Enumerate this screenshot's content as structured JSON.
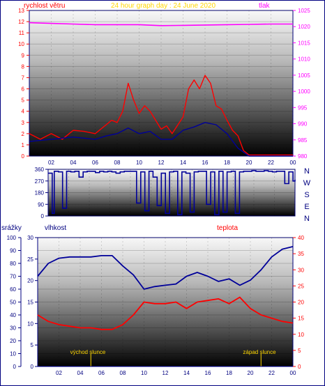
{
  "top_chart": {
    "title": "24 hour graph day : 24 June 2020",
    "left_label": "rychlost větru",
    "right_label": "tlak",
    "colors": {
      "title": "#ffd700",
      "wind": "#ff0000",
      "pressure": "#ff00ff",
      "gust_blue": "#000099",
      "axis": "#ff0000"
    }
  },
  "dir_chart": {
    "right_labels": [
      "N",
      "W",
      "S",
      "E",
      "N"
    ],
    "colors": {
      "direction": "#000099",
      "axis": "#000080"
    }
  },
  "bottom_chart": {
    "left_label": "srážky",
    "mid_label": "vlhkost",
    "right_label": "teplota",
    "sunrise_label": "východ slunce",
    "sunset_label": "západ slunce",
    "colors": {
      "humidity": "#000099",
      "temperature": "#ff0000",
      "annot": "#ffd700",
      "axis": "#000080"
    }
  },
  "chart_data": [
    {
      "type": "line",
      "title": "24 hour graph day : 24 June 2020",
      "xlabel": "",
      "x_ticks": [
        "02",
        "04",
        "06",
        "08",
        "10",
        "12",
        "14",
        "16",
        "18",
        "20",
        "22",
        "00"
      ],
      "y_left_ticks": [
        0,
        1,
        2,
        3,
        4,
        5,
        6,
        7,
        8,
        9,
        10,
        11,
        12,
        13
      ],
      "y_right_ticks": [
        980,
        985,
        990,
        995,
        1000,
        1005,
        1010,
        1015,
        1020,
        1025
      ],
      "ylim_left": [
        0,
        13
      ],
      "ylim_right": [
        980,
        1025
      ],
      "series": [
        {
          "name": "rychlost větru",
          "axis": "left",
          "color": "#ff0000",
          "x": [
            0,
            1,
            2,
            3,
            4,
            5,
            6,
            7,
            7.5,
            8,
            8.5,
            9,
            9.5,
            10,
            10.5,
            11,
            12,
            12.5,
            13,
            14,
            14.5,
            15,
            15.5,
            16,
            16.5,
            17,
            17.5,
            18,
            18.5,
            19,
            19.5,
            20,
            22,
            23,
            24
          ],
          "values": [
            2,
            1.5,
            2,
            1.5,
            2.3,
            2.2,
            2,
            2.8,
            3.2,
            3,
            4,
            6.5,
            5,
            3.8,
            4.5,
            4,
            2.4,
            2.7,
            2,
            3.5,
            6,
            6.8,
            6,
            7.2,
            6.5,
            4.5,
            4.2,
            3.2,
            2.3,
            1.8,
            0.5,
            0.1,
            0.1,
            0.1,
            0.1
          ]
        },
        {
          "name": "",
          "axis": "left",
          "color": "#000099",
          "x": [
            0,
            2,
            4,
            6,
            7,
            8,
            9,
            10,
            11,
            12,
            13,
            14,
            15,
            16,
            17,
            18,
            19,
            20,
            22,
            24
          ],
          "values": [
            1.3,
            1.5,
            1.7,
            1.5,
            1.8,
            2,
            2.5,
            2,
            2.2,
            1.5,
            1.5,
            2.3,
            2.6,
            3,
            2.8,
            2,
            0.7,
            0,
            0,
            0
          ]
        },
        {
          "name": "tlak",
          "axis": "right",
          "color": "#ff00ff",
          "x": [
            0,
            2,
            4,
            6,
            8,
            10,
            12,
            14,
            16,
            18,
            20,
            22,
            24
          ],
          "values": [
            1021.2,
            1021,
            1020.8,
            1020.6,
            1020.6,
            1020.6,
            1020.3,
            1020.4,
            1020.5,
            1020.6,
            1020.7,
            1020.8,
            1020.8
          ]
        }
      ]
    },
    {
      "type": "line",
      "title": "",
      "x_ticks": [
        "",
        "",
        "",
        "",
        "",
        "",
        "",
        "",
        "",
        "",
        "",
        ""
      ],
      "y_ticks": [
        0,
        90,
        180,
        270,
        360
      ],
      "ylim": [
        0,
        360
      ],
      "series": [
        {
          "name": "",
          "color": "#000099",
          "x": [
            0,
            0.4,
            0.6,
            1,
            1.4,
            1.8,
            2.2,
            2.6,
            3,
            3.4,
            3.8,
            4.2,
            4.6,
            5,
            5.4,
            5.8,
            6.2,
            6.6,
            7,
            7.4,
            7.8,
            8.2,
            8.6,
            9,
            9.4,
            9.8,
            10.2,
            10.6,
            11,
            11.4,
            11.8,
            12.2,
            12.6,
            13,
            13.4,
            13.8,
            14.2,
            14.6,
            15,
            15.4,
            15.8,
            16.2,
            16.6,
            17,
            17.4,
            17.8,
            18.2,
            18.6,
            19,
            19.4,
            19.8,
            20.2,
            20.6,
            21,
            21.4,
            21.8,
            22.2,
            22.6,
            23,
            23.4,
            23.8,
            24
          ],
          "values": [
            330,
            20,
            345,
            340,
            60,
            345,
            340,
            345,
            300,
            340,
            345,
            345,
            335,
            345,
            340,
            345,
            340,
            330,
            340,
            345,
            345,
            345,
            100,
            340,
            40,
            345,
            300,
            80,
            330,
            20,
            340,
            345,
            10,
            340,
            330,
            30,
            340,
            345,
            345,
            90,
            340,
            10,
            345,
            30,
            340,
            345,
            20,
            340,
            345,
            345,
            350,
            345,
            345,
            350,
            345,
            340,
            345,
            345,
            250,
            340,
            270,
            280
          ]
        }
      ]
    },
    {
      "type": "line",
      "title": "",
      "x_ticks": [
        "02",
        "04",
        "06",
        "08",
        "10",
        "12",
        "14",
        "16",
        "18",
        "20",
        "22",
        "00"
      ],
      "y_left_ticks": [
        0,
        10,
        20,
        30,
        40,
        50,
        60,
        70,
        80,
        90,
        100
      ],
      "y_mid_ticks": [
        0,
        5,
        10,
        15,
        20,
        25,
        30
      ],
      "y_right_ticks": [
        0,
        5,
        10,
        15,
        20,
        25,
        30,
        35,
        40
      ],
      "ylim_left": [
        0,
        100
      ],
      "ylim_mid": [
        0,
        30
      ],
      "ylim_right": [
        0,
        40
      ],
      "series": [
        {
          "name": "vlhkost",
          "axis": "left",
          "color": "#000099",
          "x": [
            0,
            1,
            2,
            3,
            4,
            5,
            6,
            7,
            8,
            9,
            10,
            11,
            12,
            13,
            14,
            15,
            16,
            17,
            18,
            19,
            20,
            21,
            22,
            23,
            24
          ],
          "values": [
            70,
            80,
            84,
            85,
            85,
            85,
            86,
            86,
            78,
            71,
            60,
            62,
            63,
            64,
            70,
            73,
            70,
            66,
            68,
            63,
            67,
            75,
            85,
            91,
            93
          ]
        },
        {
          "name": "teplota",
          "axis": "right",
          "color": "#ff0000",
          "x": [
            0,
            1,
            2,
            3,
            4,
            5,
            6,
            7,
            8,
            9,
            10,
            11,
            12,
            13,
            14,
            15,
            16,
            17,
            18,
            19,
            20,
            21,
            22,
            23,
            24
          ],
          "values": [
            16,
            14,
            13,
            12.5,
            12,
            12,
            11.5,
            11.5,
            13,
            16,
            20,
            19.5,
            19.5,
            20,
            18,
            20,
            20.5,
            21,
            19.5,
            21.5,
            18,
            16,
            15,
            14,
            13.5
          ]
        },
        {
          "name": "srážky",
          "axis": "left",
          "color": "#000099",
          "x": [
            0,
            24
          ],
          "values": [
            0,
            0
          ]
        }
      ],
      "annotations": [
        "východ slunce",
        "západ slunce"
      ]
    }
  ]
}
